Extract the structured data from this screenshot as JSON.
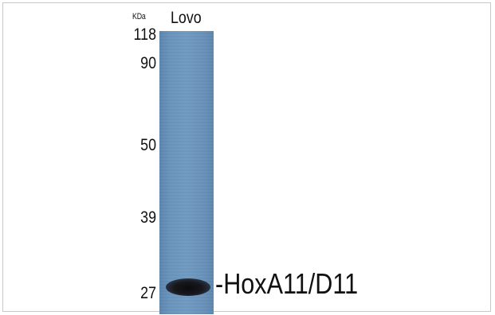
{
  "blot": {
    "unit_label": "KDa",
    "lane_label": "Lovo",
    "markers": [
      "118",
      "90",
      "50",
      "39",
      "27"
    ],
    "band_label": "-HoxA11/D11",
    "colors": {
      "membrane": "#6b95bd",
      "band": "#111216",
      "text": "#111111",
      "frame": "#c8c8c8"
    }
  }
}
